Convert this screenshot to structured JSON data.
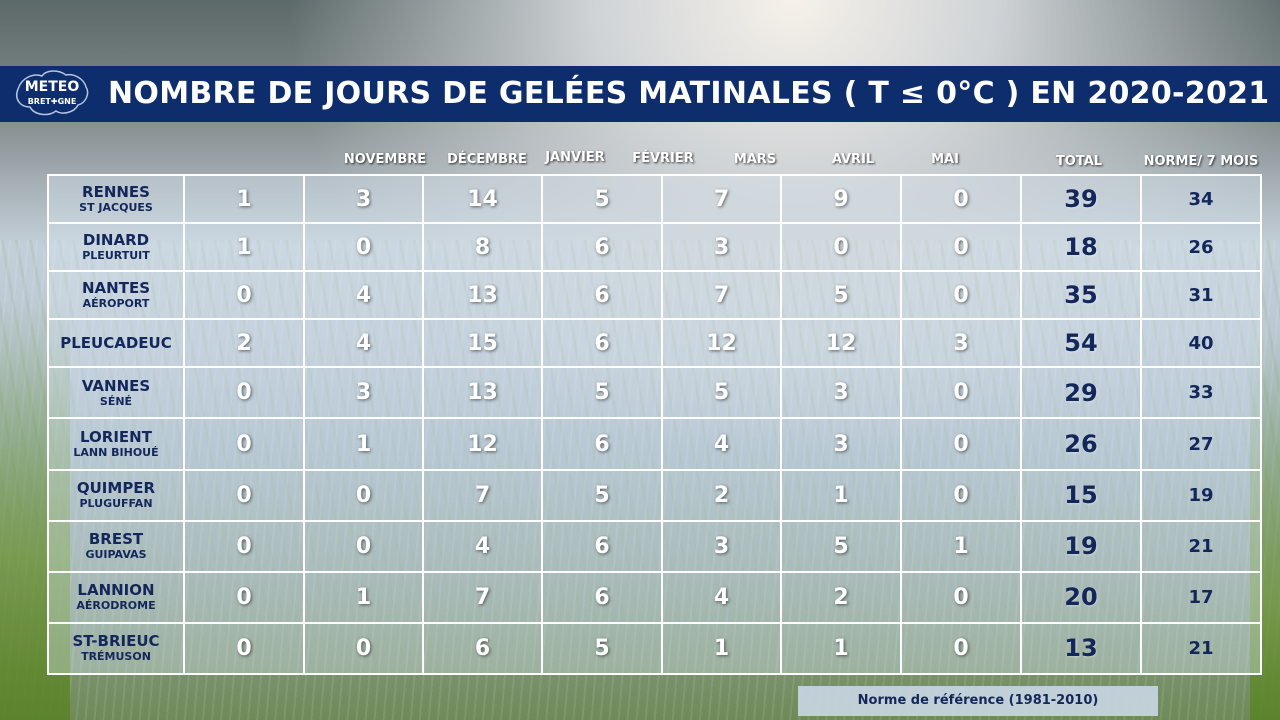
{
  "header": {
    "logo_text": "METEO BRETAGNE",
    "title": "NOMBRE DE JOURS DE GELÉES MATINALES ( T ≤ 0°C ) EN 2020-2021"
  },
  "columns": [
    "NOVEMBRE",
    "DÉCEMBRE",
    "JANVIER",
    "FÉVRIER",
    "MARS",
    "AVRIL",
    "MAI",
    "TOTAL",
    "NORME/ 7 MOIS"
  ],
  "rows": [
    {
      "station": "RENNES",
      "sub": "ST JACQUES",
      "values": [
        "1",
        "3",
        "14",
        "5",
        "7",
        "9",
        "0"
      ],
      "total": "39",
      "norme": "34"
    },
    {
      "station": "DINARD",
      "sub": "PLEURTUIT",
      "values": [
        "1",
        "0",
        "8",
        "6",
        "3",
        "0",
        "0"
      ],
      "total": "18",
      "norme": "26"
    },
    {
      "station": "NANTES",
      "sub": "AÉROPORT",
      "values": [
        "0",
        "4",
        "13",
        "6",
        "7",
        "5",
        "0"
      ],
      "total": "35",
      "norme": "31"
    },
    {
      "station": "PLEUCADEUC",
      "sub": "",
      "values": [
        "2",
        "4",
        "15",
        "6",
        "12",
        "12",
        "3"
      ],
      "total": "54",
      "norme": "40"
    },
    {
      "station": "VANNES",
      "sub": "SÉNÉ",
      "values": [
        "0",
        "3",
        "13",
        "5",
        "5",
        "3",
        "0"
      ],
      "total": "29",
      "norme": "33"
    },
    {
      "station": "LORIENT",
      "sub": "LANN BIHOUÉ",
      "values": [
        "0",
        "1",
        "12",
        "6",
        "4",
        "3",
        "0"
      ],
      "total": "26",
      "norme": "27"
    },
    {
      "station": "QUIMPER",
      "sub": "PLUGUFFAN",
      "values": [
        "0",
        "0",
        "7",
        "5",
        "2",
        "1",
        "0"
      ],
      "total": "15",
      "norme": "19"
    },
    {
      "station": "BREST",
      "sub": "GUIPAVAS",
      "values": [
        "0",
        "0",
        "4",
        "6",
        "3",
        "5",
        "1"
      ],
      "total": "19",
      "norme": "21"
    },
    {
      "station": "LANNION",
      "sub": "AÉRODROME",
      "values": [
        "0",
        "1",
        "7",
        "6",
        "4",
        "2",
        "0"
      ],
      "total": "20",
      "norme": "17"
    },
    {
      "station": "ST-BRIEUC",
      "sub": "TRÉMUSON",
      "values": [
        "0",
        "0",
        "6",
        "5",
        "1",
        "1",
        "0"
      ],
      "total": "13",
      "norme": "21"
    }
  ],
  "footnote": "Norme de référence (1981-2010)",
  "colors": {
    "title_bar": "#0d2d6c",
    "dark_text": "#13275b",
    "value_text": "#ffffff",
    "grid_lines": "#ffffff"
  },
  "icons": {
    "logo": "brittany-map-logo-icon"
  }
}
